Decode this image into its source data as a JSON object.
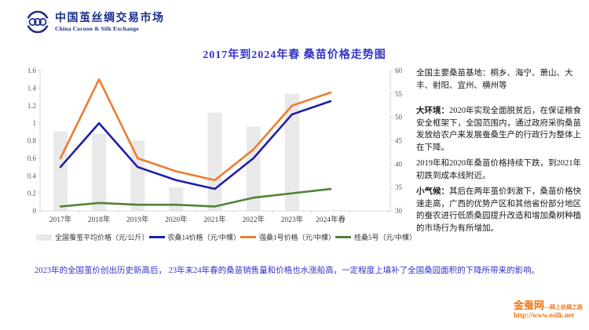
{
  "header": {
    "brand_name": "中国茧丝绸交易市场",
    "brand_name_en": "China Cocoon & Silk Exchange",
    "brand_color": "#1b2f8e"
  },
  "chart_data": {
    "type": "combo-bar-line",
    "title": "2017年到2024年春 桑苗价格走势图",
    "categories": [
      "2017年",
      "2018年",
      "2019年",
      "2020年",
      "2021年",
      "2022年",
      "2023年",
      "2024年春"
    ],
    "left_axis": {
      "min": 0,
      "max": 1.6,
      "step": 0.2,
      "ticks": [
        "0",
        "0.2",
        "0.4",
        "0.6",
        "0.8",
        "1",
        "1.2",
        "1.4",
        "1.6"
      ]
    },
    "right_axis": {
      "min": 30,
      "max": 60,
      "step": 5,
      "ticks": [
        "30",
        "35",
        "40",
        "45",
        "50",
        "55",
        "60"
      ]
    },
    "grid": false,
    "legend_position": "bottom",
    "series": [
      {
        "name": "全国蚕茧平均价格（元/公斤）",
        "type": "bar",
        "axis": "right",
        "color": "#e9e9e9",
        "values": [
          47,
          46.5,
          45,
          35,
          51,
          48,
          55,
          null
        ]
      },
      {
        "name": "农桑14价格（元/中棵）",
        "type": "line",
        "axis": "left",
        "color": "#1e1ea8",
        "values": [
          0.5,
          1.0,
          0.5,
          0.35,
          0.25,
          0.6,
          1.1,
          1.25
        ]
      },
      {
        "name": "强桑1号价格（元/中棵）",
        "type": "line",
        "axis": "left",
        "color": "#ed7d31",
        "values": [
          0.6,
          1.5,
          0.6,
          0.45,
          0.35,
          0.7,
          1.2,
          1.35
        ]
      },
      {
        "name": "桂桑5号（元/中棵）",
        "type": "line",
        "axis": "left",
        "color": "#538135",
        "values": [
          0.05,
          0.09,
          0.07,
          0.07,
          0.05,
          0.15,
          0.2,
          0.25
        ]
      }
    ]
  },
  "side_panel": {
    "p1": "全国主要桑苗基地：桐乡、海宁、萧山、大丰、射阳、宜州、横州等",
    "p2_lead": "大环境：",
    "p2_text": "2020年实现全面脱贫后，在保证粮食安全框架下，全国范围内，通过政府采购桑苗发放给农户来发展蚕桑生产的行政行为整体上在下降。",
    "p3": "2019年和2020年桑苗价格持续下跌，到2021年初跌到成本线附近。",
    "p4_lead": "小气候：",
    "p4_text": "其后在两年茧价刺激下，桑苗价格快速走高，广西的优势产区和其他省份部分地区的蚕农进行低质桑园提升改造和增加桑树种植的市场行为有所增加。"
  },
  "footnote": "2023年的全国茧价创出历史新高后， 23年末24年春的桑苗销售量和价格也水涨船高，一定程度上填补了全国桑园面积的下降所带来的影响。",
  "footer": {
    "site_name": "金蚕网",
    "site_slogan": "—网上丝绸之路",
    "site_url": "http://www.esilk.net",
    "accent_color": "#ee7511"
  }
}
